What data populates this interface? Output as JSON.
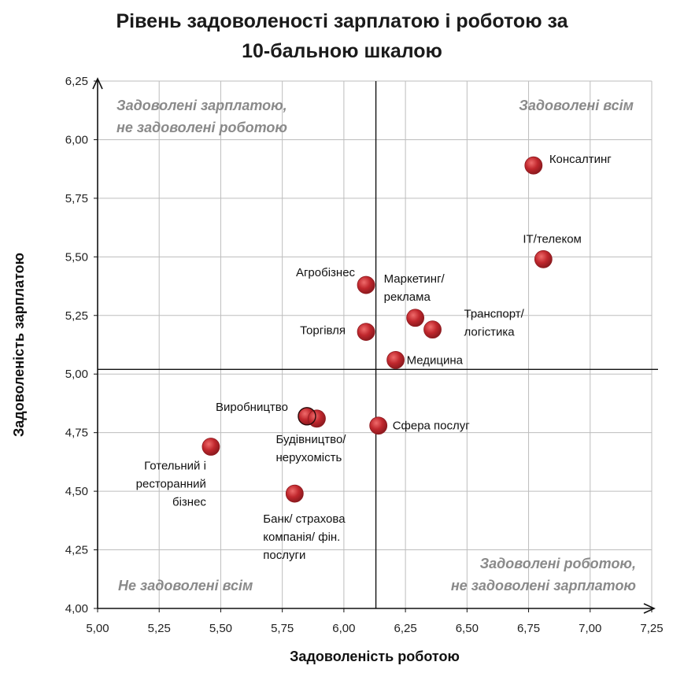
{
  "chart_data": {
    "type": "scatter",
    "title": "Рівень задоволеності зарплатою і роботою за 10-бальною шкалою",
    "title_lines": [
      "Рівень задоволеності зарплатою і роботою за",
      "10-бальною шкалою"
    ],
    "xlabel": "Задоволеність роботою",
    "ylabel": "Задоволеність зарплатою",
    "xlim": [
      5.0,
      7.25
    ],
    "ylim": [
      4.0,
      6.25
    ],
    "xticks": [
      "5,00",
      "5,25",
      "5,50",
      "5,75",
      "6,00",
      "6,25",
      "6,50",
      "6,75",
      "7,00",
      "7,25"
    ],
    "yticks": [
      "4,00",
      "4,25",
      "4,50",
      "4,75",
      "5,00",
      "5,25",
      "5,50",
      "5,75",
      "6,00",
      "6,25"
    ],
    "grid": true,
    "reference_lines": {
      "x": 6.13,
      "y": 5.02
    },
    "point_color": "#c0272d",
    "points": [
      {
        "name": "Консалтинг",
        "label_lines": [
          "Консалтинг"
        ],
        "x": 6.77,
        "y": 5.89
      },
      {
        "name": "IT/телеком",
        "label_lines": [
          "IT/телеком"
        ],
        "x": 6.81,
        "y": 5.49
      },
      {
        "name": "Агробізнес",
        "label_lines": [
          "Агробізнес"
        ],
        "x": 6.09,
        "y": 5.38
      },
      {
        "name": "Маркетинг/реклама",
        "label_lines": [
          "Маркетинг/",
          "реклама"
        ],
        "x": 6.29,
        "y": 5.24
      },
      {
        "name": "Транспорт/логістика",
        "label_lines": [
          "Транспорт/",
          "логістика"
        ],
        "x": 6.36,
        "y": 5.19
      },
      {
        "name": "Торгівля",
        "label_lines": [
          "Торгівля"
        ],
        "x": 6.09,
        "y": 5.18
      },
      {
        "name": "Медицина",
        "label_lines": [
          "Медицина"
        ],
        "x": 6.21,
        "y": 5.06
      },
      {
        "name": "Виробництво",
        "label_lines": [
          "Виробництво"
        ],
        "x": 5.85,
        "y": 4.82
      },
      {
        "name": "Будівництво/нерухомість",
        "label_lines": [
          "Будівництво/",
          "нерухомість"
        ],
        "x": 5.89,
        "y": 4.81
      },
      {
        "name": "Сфера послуг",
        "label_lines": [
          "Сфера послуг"
        ],
        "x": 6.14,
        "y": 4.78
      },
      {
        "name": "Готельний і ресторанний бізнес",
        "label_lines": [
          "Готельний і",
          "ресторанний",
          "бізнес"
        ],
        "x": 5.46,
        "y": 4.69
      },
      {
        "name": "Банк/ страхова компанія/ фін. послуги",
        "label_lines": [
          "Банк/ страхова",
          "компанія/ фін.",
          "послуги"
        ],
        "x": 5.8,
        "y": 4.49
      }
    ],
    "quadrant_labels": {
      "top_left": [
        "Задоволені зарплатою,",
        "не задоволені роботою"
      ],
      "top_right": [
        "Задоволені всім"
      ],
      "bottom_left": [
        "Не задоволені всім"
      ],
      "bottom_right": [
        "Задоволені роботою,",
        "не задоволені зарплатою"
      ]
    }
  }
}
